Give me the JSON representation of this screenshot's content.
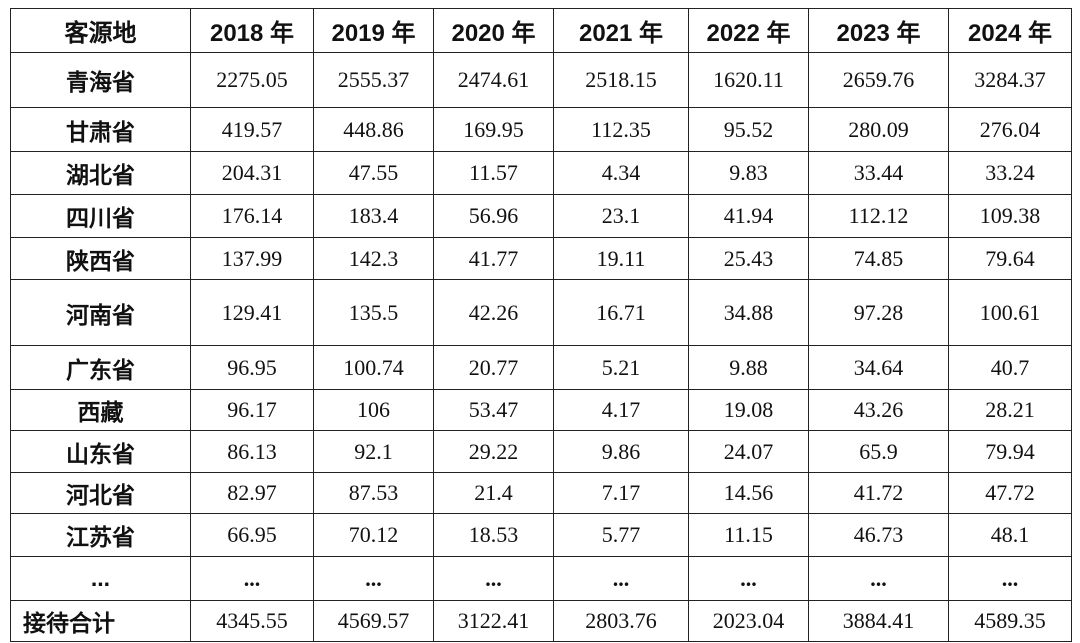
{
  "table": {
    "header": [
      "客源地",
      "2018 年",
      "2019 年",
      "2020 年",
      "2021 年",
      "2022 年",
      "2023 年",
      "2024 年"
    ],
    "rows": [
      [
        "青海省",
        2275.05,
        2555.37,
        2474.61,
        2518.15,
        1620.11,
        2659.76,
        3284.37
      ],
      [
        "甘肃省",
        419.57,
        448.86,
        169.95,
        112.35,
        95.52,
        280.09,
        276.04
      ],
      [
        "湖北省",
        204.31,
        47.55,
        11.57,
        4.34,
        9.83,
        33.44,
        33.24
      ],
      [
        "四川省",
        176.14,
        183.4,
        56.96,
        23.1,
        41.94,
        112.12,
        109.38
      ],
      [
        "陕西省",
        137.99,
        142.3,
        41.77,
        19.11,
        25.43,
        74.85,
        79.64
      ],
      [
        "河南省",
        129.41,
        135.5,
        42.26,
        16.71,
        34.88,
        97.28,
        100.61
      ],
      [
        "广东省",
        96.95,
        100.74,
        20.77,
        5.21,
        9.88,
        34.64,
        40.7
      ],
      [
        "西藏",
        96.17,
        106,
        53.47,
        4.17,
        19.08,
        43.26,
        28.21
      ],
      [
        "山东省",
        86.13,
        92.1,
        29.22,
        9.86,
        24.07,
        65.9,
        79.94
      ],
      [
        "河北省",
        82.97,
        87.53,
        21.4,
        7.17,
        14.56,
        41.72,
        47.72
      ],
      [
        "江苏省",
        66.95,
        70.12,
        18.53,
        5.77,
        11.15,
        46.73,
        48.1
      ],
      [
        "...",
        "...",
        "...",
        "...",
        "...",
        "...",
        "...",
        "..."
      ],
      [
        "接待合计",
        4345.55,
        4569.57,
        3122.41,
        2803.76,
        2023.04,
        3884.41,
        4589.35
      ]
    ]
  }
}
